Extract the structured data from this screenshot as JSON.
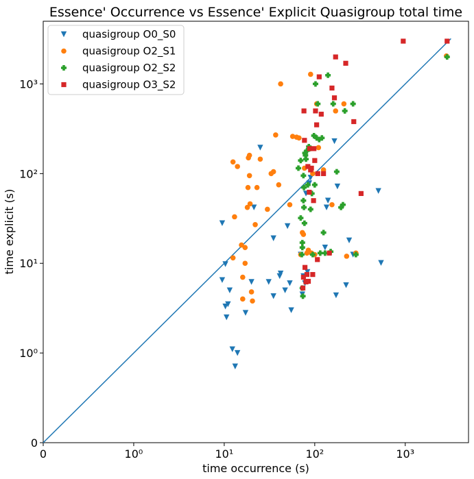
{
  "chart_data": {
    "type": "scatter",
    "title": "Essence' Occurrence vs Essence' Explicit Quasigroup total time",
    "xlabel": "time occurrence (s)",
    "ylabel": "time explicit (s)",
    "xscale": "symlog",
    "yscale": "symlog",
    "xlim": [
      0,
      5000
    ],
    "ylim": [
      0,
      5000
    ],
    "x_ticks": [
      {
        "value": 0,
        "label": "0"
      },
      {
        "value": 1,
        "label": "10⁰"
      },
      {
        "value": 10,
        "label": "10¹"
      },
      {
        "value": 100,
        "label": "10²"
      },
      {
        "value": 1000,
        "label": "10³"
      }
    ],
    "y_ticks": [
      {
        "value": 0,
        "label": "0"
      },
      {
        "value": 1,
        "label": "10⁰"
      },
      {
        "value": 10,
        "label": "10¹"
      },
      {
        "value": 100,
        "label": "10²"
      },
      {
        "value": 1000,
        "label": "10³"
      }
    ],
    "reference_line": {
      "from": [
        0,
        0
      ],
      "to": [
        3200,
        3200
      ],
      "color": "#1f77b4"
    },
    "legend": {
      "position": "top-left"
    },
    "series": [
      {
        "name": "quasigroup O0_S0",
        "marker": "triangle-down",
        "color": "#1f77b4",
        "points": [
          [
            9.5,
            28
          ],
          [
            10.3,
            9.8
          ],
          [
            9.5,
            6.5
          ],
          [
            10.6,
            2.5
          ],
          [
            10.3,
            3.3
          ],
          [
            11,
            3.5
          ],
          [
            11.5,
            5
          ],
          [
            12.3,
            1.1
          ],
          [
            13.2,
            0.85
          ],
          [
            14,
            1
          ],
          [
            20,
            6.2
          ],
          [
            17.2,
            2.8
          ],
          [
            21.3,
            42
          ],
          [
            25,
            195
          ],
          [
            31,
            6.2
          ],
          [
            35,
            4.3
          ],
          [
            35,
            19
          ],
          [
            41,
            7.2
          ],
          [
            42,
            7.7
          ],
          [
            47,
            5
          ],
          [
            50,
            26
          ],
          [
            53,
            6
          ],
          [
            55,
            3
          ],
          [
            70,
            12.5
          ],
          [
            73,
            4.5
          ],
          [
            75,
            7.2
          ],
          [
            78,
            6
          ],
          [
            80,
            60
          ],
          [
            83,
            8
          ],
          [
            87,
            78
          ],
          [
            90,
            90
          ],
          [
            130,
            15
          ],
          [
            135,
            42
          ],
          [
            140,
            50
          ],
          [
            165,
            230
          ],
          [
            172,
            4.4
          ],
          [
            178,
            72
          ],
          [
            222,
            5.7
          ],
          [
            240,
            18
          ],
          [
            265,
            12.5
          ],
          [
            505,
            64
          ],
          [
            540,
            10.1
          ]
        ]
      },
      {
        "name": "quasigroup O2_S1",
        "marker": "circle",
        "color": "#ff7f0e",
        "points": [
          [
            12.5,
            135
          ],
          [
            12.5,
            11.5
          ],
          [
            13,
            33
          ],
          [
            14,
            120
          ],
          [
            15.5,
            16
          ],
          [
            16,
            4
          ],
          [
            16,
            7
          ],
          [
            17,
            10
          ],
          [
            17,
            15
          ],
          [
            18,
            42
          ],
          [
            18.3,
            70
          ],
          [
            18.5,
            150
          ],
          [
            19,
            160
          ],
          [
            19,
            95
          ],
          [
            19.3,
            46
          ],
          [
            20,
            4.8
          ],
          [
            20.5,
            3.8
          ],
          [
            22,
            27
          ],
          [
            23,
            70
          ],
          [
            25,
            145
          ],
          [
            30,
            40
          ],
          [
            33,
            100
          ],
          [
            35,
            105
          ],
          [
            37,
            270
          ],
          [
            40,
            75
          ],
          [
            42,
            1000
          ],
          [
            53,
            45
          ],
          [
            57,
            260
          ],
          [
            63,
            255
          ],
          [
            67,
            250
          ],
          [
            70,
            12.5
          ],
          [
            73,
            22
          ],
          [
            75,
            21
          ],
          [
            77,
            115
          ],
          [
            82,
            13
          ],
          [
            85,
            14
          ],
          [
            90,
            1280
          ],
          [
            92,
            13
          ],
          [
            95,
            100
          ],
          [
            100,
            12.5
          ],
          [
            105,
            600
          ],
          [
            110,
            195
          ],
          [
            125,
            110
          ],
          [
            155,
            45
          ],
          [
            170,
            500
          ],
          [
            210,
            600
          ],
          [
            225,
            12
          ],
          [
            285,
            13
          ],
          [
            2850,
            2050
          ]
        ]
      },
      {
        "name": "quasigroup O2_S2",
        "marker": "plus",
        "color": "#2ca02c",
        "points": [
          [
            66,
            115
          ],
          [
            70,
            140
          ],
          [
            70,
            32
          ],
          [
            72,
            12.5
          ],
          [
            73,
            17
          ],
          [
            73,
            15
          ],
          [
            73,
            5.3
          ],
          [
            74,
            4.3
          ],
          [
            75,
            50
          ],
          [
            75,
            95
          ],
          [
            76,
            70
          ],
          [
            76,
            42
          ],
          [
            77,
            28
          ],
          [
            78,
            170
          ],
          [
            79,
            160
          ],
          [
            80,
            145
          ],
          [
            82,
            180
          ],
          [
            84,
            75
          ],
          [
            86,
            200
          ],
          [
            88,
            190
          ],
          [
            90,
            40
          ],
          [
            93,
            60
          ],
          [
            95,
            12.5
          ],
          [
            98,
            265
          ],
          [
            100,
            75
          ],
          [
            102,
            1000
          ],
          [
            105,
            250
          ],
          [
            108,
            600
          ],
          [
            112,
            240
          ],
          [
            115,
            13
          ],
          [
            120,
            250
          ],
          [
            125,
            22
          ],
          [
            130,
            13
          ],
          [
            140,
            1250
          ],
          [
            150,
            13.5
          ],
          [
            160,
            600
          ],
          [
            175,
            105
          ],
          [
            195,
            42
          ],
          [
            205,
            45
          ],
          [
            215,
            500
          ],
          [
            265,
            600
          ],
          [
            285,
            12.5
          ],
          [
            2900,
            2000
          ]
        ]
      },
      {
        "name": "quasigroup O3_S2",
        "marker": "square",
        "color": "#d62728",
        "points": [
          [
            74,
            5.3
          ],
          [
            75,
            7
          ],
          [
            76,
            500
          ],
          [
            77,
            235
          ],
          [
            78,
            9
          ],
          [
            80,
            6.2
          ],
          [
            82,
            7.5
          ],
          [
            84,
            120
          ],
          [
            85,
            6.3
          ],
          [
            87,
            62
          ],
          [
            88,
            190
          ],
          [
            90,
            110
          ],
          [
            92,
            115
          ],
          [
            95,
            7.5
          ],
          [
            97,
            50
          ],
          [
            98,
            190
          ],
          [
            100,
            140
          ],
          [
            102,
            500
          ],
          [
            105,
            350
          ],
          [
            107,
            11
          ],
          [
            108,
            100
          ],
          [
            112,
            1200
          ],
          [
            118,
            460
          ],
          [
            125,
            100
          ],
          [
            145,
            13
          ],
          [
            155,
            900
          ],
          [
            165,
            700
          ],
          [
            170,
            2000
          ],
          [
            220,
            1700
          ],
          [
            270,
            380
          ],
          [
            325,
            60
          ],
          [
            950,
            3000
          ],
          [
            2900,
            3000
          ]
        ]
      }
    ]
  }
}
